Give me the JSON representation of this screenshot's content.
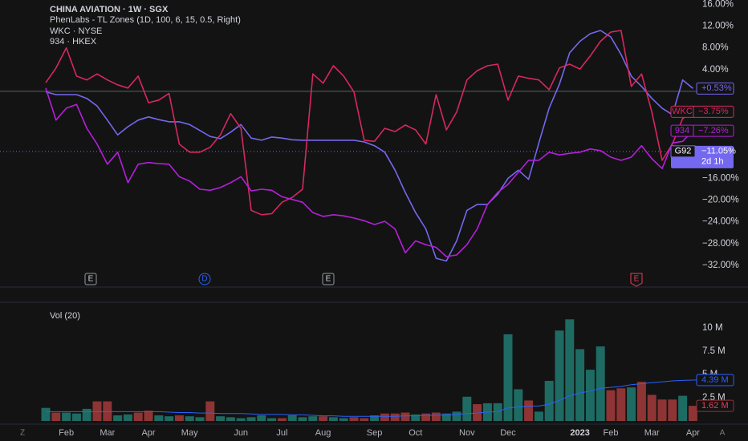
{
  "header": {
    "title": "CHINA AVIATION · 1W · SGX",
    "indicators": [
      "PhenLabs - TL Zones (1D, 100, 6, 15, 0.5, Right)",
      "WKC · NYSE",
      "934 · HKEX"
    ]
  },
  "events": [
    "E",
    "D",
    "E",
    "E"
  ],
  "controls": [
    "Z",
    "A"
  ],
  "chart_data": [
    {
      "type": "line",
      "categories": [
        null,
        null,
        "Feb",
        null,
        null,
        null,
        "Mar",
        null,
        null,
        null,
        "Apr",
        null,
        null,
        null,
        "May",
        null,
        null,
        null,
        null,
        "Jun",
        null,
        null,
        null,
        "Jul",
        null,
        null,
        null,
        "Aug",
        null,
        null,
        null,
        null,
        "Sep",
        null,
        null,
        null,
        "Oct",
        null,
        null,
        null,
        null,
        "Nov",
        null,
        null,
        null,
        "Dec",
        null,
        null,
        null,
        null,
        null,
        null,
        "2023",
        null,
        null,
        "Feb",
        null,
        null,
        null,
        "Mar",
        null,
        null,
        null,
        "Apr"
      ],
      "ylim": [
        -36.0,
        16.8
      ],
      "yticks": [
        {
          "value": 16,
          "label": "16.00%"
        },
        {
          "value": 12,
          "label": "12.00%"
        },
        {
          "value": 8,
          "label": "8.00%"
        },
        {
          "value": 4,
          "label": "4.00%"
        },
        {
          "value": -16,
          "label": "−16.00%"
        },
        {
          "value": -20,
          "label": "−20.00%"
        },
        {
          "value": -24,
          "label": "−24.00%"
        },
        {
          "value": -28,
          "label": "−28.00%"
        },
        {
          "value": -32,
          "label": "−32.00%"
        }
      ],
      "zero_line": true,
      "series": [
        {
          "color": "#7468f0",
          "values": [
            -0.1,
            -0.6,
            -0.6,
            -0.6,
            -1.3,
            -2.7,
            -5.3,
            -8.0,
            -6.5,
            -5.3,
            -4.7,
            -5.2,
            -5.6,
            -5.6,
            -6.1,
            -7.2,
            -8.3,
            -8.7,
            -7.5,
            -6.1,
            -8.6,
            -9.0,
            -8.4,
            -8.6,
            -8.9,
            -9.0,
            -9.0,
            -9.0,
            -9.0,
            -9.0,
            -9.0,
            -9.3,
            -10.0,
            -11.2,
            -14.5,
            -18.6,
            -22.3,
            -25.3,
            -30.7,
            -31.2,
            -27.5,
            -21.9,
            -20.8,
            -20.8,
            -18.9,
            -16.0,
            -14.5,
            -16.2,
            -9.5,
            -3.1,
            1.3,
            7.1,
            9.2,
            10.6,
            11.2,
            10.0,
            6.8,
            2.8,
            0.9,
            -1.3,
            -3.1,
            -4.3,
            2.1,
            0.53
          ],
          "value_labels": [
            null,
            null,
            null,
            null,
            null,
            null,
            null,
            null,
            null,
            null,
            null,
            null,
            null,
            null,
            null,
            null,
            null,
            null,
            null,
            null,
            null,
            null,
            null,
            null,
            null,
            null,
            null,
            null,
            null,
            null,
            null,
            null,
            null,
            null,
            null,
            null,
            null,
            null,
            null,
            null,
            null,
            null,
            null,
            null,
            null,
            null,
            null,
            null,
            null,
            null,
            null,
            null,
            null,
            null,
            null,
            null,
            null,
            null,
            null,
            null,
            null,
            null,
            null,
            "+0.53%"
          ]
        },
        {
          "name": "WKC",
          "color": "#d6285f",
          "values": [
            1.6,
            4.3,
            8.0,
            2.8,
            2.1,
            3.2,
            2.1,
            1.2,
            0.6,
            2.8,
            -2.1,
            -1.6,
            -0.4,
            -9.7,
            -11.2,
            -11.2,
            -10.3,
            -8.0,
            -4.1,
            -6.8,
            -21.9,
            -22.7,
            -22.5,
            -20.4,
            -19.5,
            -18.0,
            3.2,
            1.5,
            4.7,
            2.8,
            -0.1,
            -9.0,
            -9.2,
            -6.8,
            -7.4,
            -6.2,
            -7.1,
            -9.7,
            -0.6,
            -7.1,
            -3.8,
            2.1,
            3.8,
            4.7,
            5.0,
            -1.6,
            2.8,
            2.4,
            2.1,
            0.3,
            4.3,
            5.0,
            4.1,
            6.5,
            9.2,
            10.9,
            11.2,
            0.9,
            3.2,
            -3.8,
            -12.7,
            -9.7,
            -5.0,
            -3.75
          ],
          "value_labels": [
            null,
            null,
            null,
            null,
            null,
            null,
            null,
            null,
            null,
            null,
            null,
            null,
            null,
            null,
            null,
            null,
            null,
            null,
            null,
            null,
            null,
            null,
            null,
            null,
            null,
            null,
            null,
            null,
            null,
            null,
            null,
            null,
            null,
            null,
            null,
            null,
            null,
            null,
            null,
            null,
            null,
            null,
            null,
            null,
            null,
            null,
            null,
            null,
            null,
            null,
            null,
            null,
            null,
            null,
            null,
            null,
            null,
            null,
            null,
            null,
            null,
            null,
            null,
            "−3.75%"
          ]
        },
        {
          "name": "934",
          "color": "#b51fdc",
          "values": [
            0.6,
            -5.3,
            -3.1,
            -2.4,
            -6.8,
            -9.7,
            -13.4,
            -11.2,
            -16.8,
            -13.4,
            -13.1,
            -13.3,
            -13.4,
            -15.7,
            -16.5,
            -18.0,
            -18.2,
            -17.7,
            -16.8,
            -15.7,
            -18.3,
            -18.0,
            -18.2,
            -19.4,
            -19.9,
            -20.4,
            -22.3,
            -23.0,
            -22.7,
            -22.9,
            -23.3,
            -23.8,
            -24.5,
            -23.9,
            -25.3,
            -29.7,
            -27.5,
            -28.2,
            -28.7,
            -30.4,
            -30.1,
            -28.2,
            -25.3,
            -20.8,
            -18.6,
            -17.1,
            -14.9,
            -12.7,
            -12.7,
            -11.2,
            -11.7,
            -11.4,
            -11.2,
            -10.6,
            -10.9,
            -12.1,
            -12.7,
            -12.1,
            -10.0,
            -12.4,
            -14.2,
            -9.5,
            -9.2,
            -7.26
          ],
          "value_labels": [
            null,
            null,
            null,
            null,
            null,
            null,
            null,
            null,
            null,
            null,
            null,
            null,
            null,
            null,
            null,
            null,
            null,
            null,
            null,
            null,
            null,
            null,
            null,
            null,
            null,
            null,
            null,
            null,
            null,
            null,
            null,
            null,
            null,
            null,
            null,
            null,
            null,
            null,
            null,
            null,
            null,
            null,
            null,
            null,
            null,
            null,
            null,
            null,
            null,
            null,
            null,
            null,
            null,
            null,
            null,
            null,
            null,
            null,
            null,
            null,
            null,
            null,
            null,
            "−7.26%"
          ]
        }
      ],
      "price_line": {
        "name": "G92",
        "value": -11.05,
        "label": "−11.05%",
        "countdown": "2d 1h",
        "color": "#7468f0"
      }
    },
    {
      "type": "bar",
      "title": "Vol (20)",
      "ylim": [
        0,
        12.3
      ],
      "yticks": [
        {
          "value": 2.5,
          "label": "2.5 M"
        },
        {
          "value": 5,
          "label": "5 M"
        },
        {
          "value": 7.5,
          "label": "7.5 M"
        },
        {
          "value": 10,
          "label": "10 M"
        }
      ],
      "values": [
        1.4,
        0.9,
        0.9,
        0.8,
        1.3,
        2.1,
        2.1,
        0.6,
        0.7,
        0.9,
        1.1,
        0.6,
        0.5,
        0.6,
        0.5,
        0.4,
        2.1,
        0.5,
        0.4,
        0.3,
        0.4,
        0.6,
        0.3,
        0.3,
        0.6,
        0.4,
        0.5,
        0.5,
        0.4,
        0.3,
        0.4,
        0.3,
        0.6,
        0.8,
        0.8,
        0.9,
        0.7,
        0.8,
        0.9,
        0.8,
        1.0,
        2.6,
        1.8,
        1.9,
        1.9,
        9.3,
        3.4,
        2.2,
        1.0,
        4.3,
        9.7,
        10.9,
        7.7,
        5.5,
        8.0,
        3.3,
        3.5,
        3.6,
        4.2,
        2.8,
        2.3,
        2.3,
        2.7,
        1.62
      ],
      "colors": [
        "#1e6b63",
        "#8e3434",
        "#1e6b63",
        "#1e6b63",
        "#1e6b63",
        "#8e3434",
        "#8e3434",
        "#1e6b63",
        "#1e6b63",
        "#8e3434",
        "#8e3434",
        "#1e6b63",
        "#1e6b63",
        "#8e3434",
        "#1e6b63",
        "#1e6b63",
        "#8e3434",
        "#1e6b63",
        "#1e6b63",
        "#1e6b63",
        "#1e6b63",
        "#1e6b63",
        "#1e6b63",
        "#8e3434",
        "#1e6b63",
        "#1e6b63",
        "#1e6b63",
        "#8e3434",
        "#1e6b63",
        "#1e6b63",
        "#8e3434",
        "#8e3434",
        "#1e6b63",
        "#8e3434",
        "#8e3434",
        "#8e3434",
        "#1e6b63",
        "#8e3434",
        "#8e3434",
        "#1e6b63",
        "#1e6b63",
        "#1e6b63",
        "#8e3434",
        "#1e6b63",
        "#1e6b63",
        "#1e6b63",
        "#1e6b63",
        "#8e3434",
        "#1e6b63",
        "#1e6b63",
        "#1e6b63",
        "#1e6b63",
        "#1e6b63",
        "#1e6b63",
        "#1e6b63",
        "#8e3434",
        "#8e3434",
        "#1e6b63",
        "#8e3434",
        "#8e3434",
        "#8e3434",
        "#8e3434",
        "#1e6b63",
        "#8e3434"
      ],
      "value_labels": [
        null,
        null,
        null,
        null,
        null,
        null,
        null,
        null,
        null,
        null,
        null,
        null,
        null,
        null,
        null,
        null,
        null,
        null,
        null,
        null,
        null,
        null,
        null,
        null,
        null,
        null,
        null,
        null,
        null,
        null,
        null,
        null,
        null,
        null,
        null,
        null,
        null,
        null,
        null,
        null,
        null,
        null,
        null,
        null,
        null,
        null,
        null,
        null,
        null,
        null,
        null,
        null,
        null,
        null,
        null,
        null,
        null,
        null,
        null,
        null,
        null,
        null,
        null,
        "1.62 M"
      ],
      "ma": {
        "color": "#2962ff",
        "values": [
          1.0,
          1.0,
          1.0,
          1.0,
          1.0,
          1.0,
          1.0,
          1.0,
          1.0,
          1.0,
          1.0,
          1.0,
          0.95,
          0.9,
          0.9,
          0.85,
          0.85,
          0.8,
          0.8,
          0.8,
          0.75,
          0.7,
          0.7,
          0.7,
          0.65,
          0.65,
          0.6,
          0.55,
          0.55,
          0.5,
          0.5,
          0.5,
          0.5,
          0.5,
          0.5,
          0.55,
          0.55,
          0.6,
          0.6,
          0.65,
          0.7,
          0.8,
          0.85,
          0.95,
          1.0,
          1.4,
          1.5,
          1.6,
          1.6,
          1.8,
          2.2,
          2.7,
          3.0,
          3.2,
          3.5,
          3.6,
          3.7,
          3.9,
          4.0,
          4.1,
          4.2,
          4.3,
          4.35,
          4.39
        ],
        "value_labels": [
          null,
          null,
          null,
          null,
          null,
          null,
          null,
          null,
          null,
          null,
          null,
          null,
          null,
          null,
          null,
          null,
          null,
          null,
          null,
          null,
          null,
          null,
          null,
          null,
          null,
          null,
          null,
          null,
          null,
          null,
          null,
          null,
          null,
          null,
          null,
          null,
          null,
          null,
          null,
          null,
          null,
          null,
          null,
          null,
          null,
          null,
          null,
          null,
          null,
          null,
          null,
          null,
          null,
          null,
          null,
          null,
          null,
          null,
          null,
          null,
          null,
          null,
          null,
          "4.39 M"
        ]
      }
    }
  ]
}
